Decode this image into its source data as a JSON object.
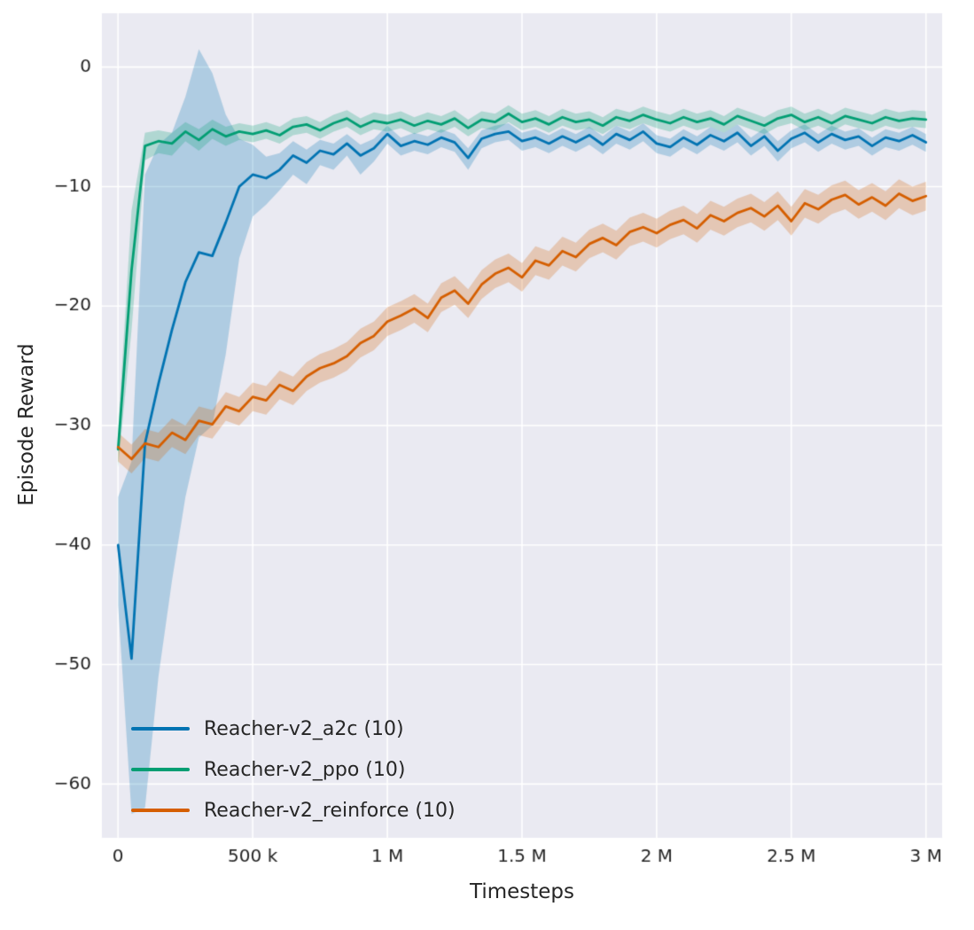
{
  "figure": {
    "plot_background": "#eaeaf2",
    "grid_color": "#ffffff",
    "text_color": "#262626",
    "band_alpha": 0.25
  },
  "chart_data": {
    "type": "line",
    "title": "",
    "xlabel": "Timesteps",
    "ylabel": "Episode Reward",
    "xlim": [
      -60000,
      3060000
    ],
    "ylim": [
      -64.5,
      4.5
    ],
    "grid": true,
    "legend_position": "lower left",
    "x_ticks": {
      "values": [
        0,
        500000,
        1000000,
        1500000,
        2000000,
        2500000,
        3000000
      ],
      "labels": [
        "0",
        "500 k",
        "1 M",
        "1.5 M",
        "2 M",
        "2.5 M",
        "3 M"
      ]
    },
    "y_ticks": {
      "values": [
        0,
        -10,
        -20,
        -30,
        -40,
        -50,
        -60
      ],
      "labels": [
        "0",
        "−10",
        "−20",
        "−30",
        "−40",
        "−50",
        "−60"
      ]
    },
    "x": {
      "start": 0,
      "step": 50000,
      "count": 61
    },
    "series": [
      {
        "name": "Reacher-v2_a2c (10)",
        "color": "#0173b2",
        "mean": [
          -40.0,
          -49.5,
          -31.5,
          -26.5,
          -22.0,
          -18.0,
          -15.5,
          -15.8,
          -13.0,
          -10.0,
          -9.0,
          -9.3,
          -8.6,
          -7.4,
          -8.0,
          -7.0,
          -7.3,
          -6.4,
          -7.4,
          -6.8,
          -5.6,
          -6.6,
          -6.2,
          -6.5,
          -5.9,
          -6.3,
          -7.6,
          -6.0,
          -5.6,
          -5.4,
          -6.2,
          -5.9,
          -6.4,
          -5.8,
          -6.3,
          -5.7,
          -6.5,
          -5.6,
          -6.1,
          -5.4,
          -6.4,
          -6.7,
          -5.9,
          -6.5,
          -5.7,
          -6.2,
          -5.5,
          -6.6,
          -5.8,
          -7.0,
          -6.0,
          -5.5,
          -6.3,
          -5.6,
          -6.1,
          -5.8,
          -6.6,
          -5.9,
          -6.2,
          -5.7,
          -6.3
        ],
        "lower": [
          -45.0,
          -62.5,
          -62.0,
          -51.0,
          -43.0,
          -36.0,
          -31.0,
          -30.0,
          -24.0,
          -16.0,
          -12.5,
          -11.5,
          -10.3,
          -9.0,
          -9.8,
          -8.2,
          -8.6,
          -7.4,
          -9.0,
          -7.9,
          -6.4,
          -7.4,
          -7.0,
          -7.3,
          -6.7,
          -7.1,
          -8.6,
          -6.8,
          -6.3,
          -6.1,
          -7.0,
          -6.7,
          -7.2,
          -6.6,
          -7.1,
          -6.5,
          -7.3,
          -6.4,
          -6.9,
          -6.2,
          -7.2,
          -7.5,
          -6.7,
          -7.3,
          -6.5,
          -7.0,
          -6.3,
          -7.4,
          -6.6,
          -7.9,
          -6.8,
          -6.3,
          -7.1,
          -6.4,
          -6.9,
          -6.6,
          -7.4,
          -6.7,
          -7.0,
          -6.5,
          -7.1
        ],
        "upper": [
          -36.0,
          -33.0,
          -9.0,
          -6.5,
          -5.5,
          -2.5,
          1.5,
          -0.5,
          -4.0,
          -6.0,
          -6.5,
          -7.5,
          -7.2,
          -6.2,
          -6.9,
          -6.1,
          -6.4,
          -5.6,
          -6.5,
          -6.0,
          -4.9,
          -5.9,
          -5.5,
          -5.8,
          -5.2,
          -5.6,
          -6.8,
          -5.3,
          -4.9,
          -4.7,
          -5.5,
          -5.2,
          -5.7,
          -5.1,
          -5.6,
          -5.0,
          -5.8,
          -4.9,
          -5.4,
          -4.7,
          -5.7,
          -6.0,
          -5.2,
          -5.8,
          -5.0,
          -5.5,
          -4.8,
          -5.9,
          -5.1,
          -6.2,
          -5.3,
          -4.8,
          -5.6,
          -4.9,
          -5.4,
          -5.1,
          -5.9,
          -5.2,
          -5.5,
          -5.0,
          -5.6
        ]
      },
      {
        "name": "Reacher-v2_ppo (10)",
        "color": "#029e73",
        "mean": [
          -32.0,
          -17.0,
          -6.6,
          -6.2,
          -6.4,
          -5.4,
          -6.1,
          -5.2,
          -5.8,
          -5.4,
          -5.6,
          -5.3,
          -5.7,
          -5.0,
          -4.8,
          -5.3,
          -4.7,
          -4.3,
          -5.0,
          -4.5,
          -4.7,
          -4.4,
          -4.9,
          -4.5,
          -4.8,
          -4.3,
          -5.1,
          -4.4,
          -4.6,
          -3.9,
          -4.6,
          -4.3,
          -4.8,
          -4.2,
          -4.6,
          -4.4,
          -4.9,
          -4.2,
          -4.5,
          -4.0,
          -4.4,
          -4.7,
          -4.2,
          -4.6,
          -4.3,
          -4.8,
          -4.1,
          -4.5,
          -4.9,
          -4.3,
          -4.0,
          -4.6,
          -4.2,
          -4.7,
          -4.1,
          -4.4,
          -4.7,
          -4.2,
          -4.5,
          -4.3,
          -4.4
        ],
        "lower": [
          -33.5,
          -22.0,
          -7.8,
          -7.2,
          -7.4,
          -6.2,
          -7.0,
          -6.0,
          -6.6,
          -6.1,
          -6.3,
          -6.0,
          -6.4,
          -5.7,
          -5.5,
          -6.0,
          -5.4,
          -5.0,
          -5.7,
          -5.2,
          -5.4,
          -5.1,
          -5.6,
          -5.2,
          -5.5,
          -5.0,
          -5.8,
          -5.1,
          -5.3,
          -4.6,
          -5.3,
          -5.0,
          -5.5,
          -4.9,
          -5.3,
          -5.1,
          -5.6,
          -4.9,
          -5.2,
          -4.7,
          -5.1,
          -5.4,
          -4.9,
          -5.3,
          -5.0,
          -5.5,
          -4.8,
          -5.2,
          -5.6,
          -5.0,
          -4.7,
          -5.3,
          -4.9,
          -5.4,
          -4.8,
          -5.1,
          -5.4,
          -4.9,
          -5.2,
          -5.0,
          -5.1
        ],
        "upper": [
          -30.5,
          -12.0,
          -5.5,
          -5.3,
          -5.5,
          -4.6,
          -5.2,
          -4.4,
          -5.0,
          -4.7,
          -4.9,
          -4.6,
          -5.0,
          -4.3,
          -4.1,
          -4.6,
          -4.0,
          -3.6,
          -4.3,
          -3.8,
          -4.0,
          -3.7,
          -4.2,
          -3.8,
          -4.1,
          -3.6,
          -4.4,
          -3.7,
          -3.9,
          -3.2,
          -3.9,
          -3.6,
          -4.1,
          -3.5,
          -3.9,
          -3.7,
          -4.2,
          -3.5,
          -3.8,
          -3.3,
          -3.7,
          -4.0,
          -3.5,
          -3.9,
          -3.6,
          -4.1,
          -3.4,
          -3.8,
          -4.2,
          -3.6,
          -3.3,
          -3.9,
          -3.5,
          -4.0,
          -3.4,
          -3.7,
          -4.0,
          -3.5,
          -3.8,
          -3.6,
          -3.7
        ]
      },
      {
        "name": "Reacher-v2_reinforce (10)",
        "color": "#d55e00",
        "mean": [
          -31.8,
          -32.8,
          -31.5,
          -31.8,
          -30.6,
          -31.2,
          -29.6,
          -29.9,
          -28.4,
          -28.8,
          -27.6,
          -27.9,
          -26.6,
          -27.1,
          -25.9,
          -25.2,
          -24.8,
          -24.2,
          -23.1,
          -22.5,
          -21.3,
          -20.8,
          -20.2,
          -21.0,
          -19.3,
          -18.7,
          -19.8,
          -18.2,
          -17.3,
          -16.8,
          -17.6,
          -16.2,
          -16.6,
          -15.4,
          -15.9,
          -14.8,
          -14.3,
          -14.9,
          -13.8,
          -13.4,
          -13.9,
          -13.2,
          -12.8,
          -13.5,
          -12.4,
          -12.9,
          -12.2,
          -11.8,
          -12.5,
          -11.6,
          -12.9,
          -11.4,
          -11.9,
          -11.1,
          -10.7,
          -11.5,
          -10.9,
          -11.6,
          -10.6,
          -11.2,
          -10.8
        ],
        "lower": [
          -33.0,
          -34.0,
          -32.7,
          -33.0,
          -31.8,
          -32.4,
          -30.8,
          -31.1,
          -29.6,
          -30.0,
          -28.8,
          -29.1,
          -27.8,
          -28.3,
          -27.1,
          -26.4,
          -26.0,
          -25.4,
          -24.3,
          -23.7,
          -22.5,
          -22.0,
          -21.4,
          -22.2,
          -20.5,
          -19.9,
          -21.0,
          -19.4,
          -18.5,
          -18.0,
          -18.8,
          -17.4,
          -17.8,
          -16.6,
          -17.1,
          -16.0,
          -15.5,
          -16.1,
          -15.0,
          -14.6,
          -15.1,
          -14.4,
          -14.0,
          -14.7,
          -13.6,
          -14.1,
          -13.4,
          -13.0,
          -13.7,
          -12.8,
          -14.1,
          -12.6,
          -13.1,
          -12.3,
          -11.9,
          -12.7,
          -12.1,
          -12.8,
          -11.8,
          -12.4,
          -12.0
        ],
        "upper": [
          -30.6,
          -31.6,
          -30.3,
          -30.6,
          -29.4,
          -30.0,
          -28.4,
          -28.7,
          -27.2,
          -27.6,
          -26.4,
          -26.7,
          -25.4,
          -25.9,
          -24.7,
          -24.0,
          -23.6,
          -23.0,
          -21.9,
          -21.3,
          -20.1,
          -19.6,
          -19.0,
          -19.8,
          -18.1,
          -17.5,
          -18.6,
          -17.0,
          -16.1,
          -15.6,
          -16.4,
          -15.0,
          -15.4,
          -14.2,
          -14.7,
          -13.6,
          -13.1,
          -13.7,
          -12.6,
          -12.2,
          -12.7,
          -12.0,
          -11.6,
          -12.3,
          -11.2,
          -11.7,
          -11.0,
          -10.6,
          -11.3,
          -10.4,
          -11.7,
          -10.2,
          -10.7,
          -9.9,
          -9.5,
          -10.3,
          -9.7,
          -10.4,
          -9.4,
          -10.0,
          -9.6
        ]
      }
    ]
  }
}
